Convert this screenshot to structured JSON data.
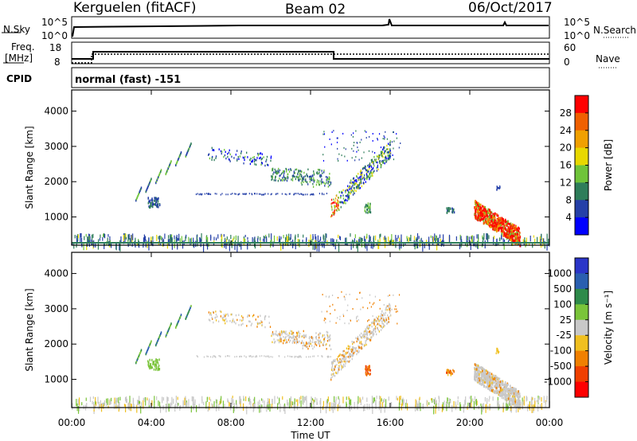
{
  "header": {
    "station": "Kerguelen (fitACF)",
    "beam": "Beam 02",
    "date": "06/Oct/2017"
  },
  "panels": {
    "nsky_label": "N.Sky",
    "nsky_scale": [
      "10^5",
      "10^0"
    ],
    "nsearch_label": "N.Search",
    "nsearch_scale": [
      "10^5",
      "10^0"
    ],
    "freq_label": "Freq.",
    "freq_unit": "[MHz]",
    "freq_scale": [
      "18",
      "8"
    ],
    "nave_label": "Nave",
    "nave_scale": [
      "60",
      "0"
    ],
    "cpid_label": "CPID",
    "cpid_text": "normal (fast) -151"
  },
  "colors": {
    "power": [
      "#0000ff",
      "#2540a8",
      "#2e7d5a",
      "#6fc43a",
      "#e8d800",
      "#f0a000",
      "#f06000",
      "#ff0000"
    ],
    "velocity": [
      "#2a35c8",
      "#2a5fb0",
      "#2e8a4a",
      "#7ac43a",
      "#c8c8c8",
      "#f0c020",
      "#f08000",
      "#f04000",
      "#ff0000"
    ]
  },
  "chart_data": [
    {
      "type": "heatmap",
      "title": "",
      "quantity": "Power",
      "xlabel": "Time UT",
      "ylabel": "Slant Range [km]",
      "x_ticks": [
        "00:00",
        "04:00",
        "08:00",
        "12:00",
        "16:00",
        "20:00",
        "00:00"
      ],
      "y_ticks": [
        "1000",
        "2000",
        "3000",
        "4000"
      ],
      "colorbar_label": "Power [dB]",
      "colorbar_ticks": [
        "4",
        "8",
        "12",
        "16",
        "20",
        "24",
        "28"
      ]
    },
    {
      "type": "heatmap",
      "title": "",
      "quantity": "Velocity",
      "xlabel": "Time UT",
      "ylabel": "Slant Range [km]",
      "x_ticks": [
        "00:00",
        "04:00",
        "08:00",
        "12:00",
        "16:00",
        "20:00",
        "00:00"
      ],
      "y_ticks": [
        "1000",
        "2000",
        "3000",
        "4000"
      ],
      "colorbar_label": "Velocity [m s⁻¹]",
      "colorbar_ticks": [
        "1000",
        "500",
        "100",
        "25",
        "-25",
        "-100",
        "-500",
        "-1000"
      ]
    }
  ]
}
